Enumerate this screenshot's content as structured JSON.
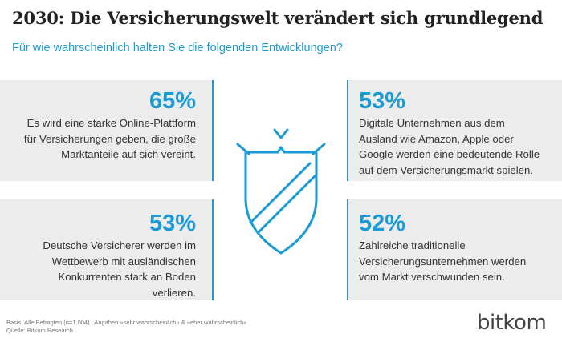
{
  "title": "2030: Die Versicherungswelt verändert sich grundlegend",
  "subtitle": "Für wie wahrscheinlich halten Sie die folgenden Entwicklungen?",
  "accent_color": "#1a9ad6",
  "boxes": {
    "top_left": {
      "percent": "65%",
      "lines": [
        "Es wird eine starke Online-Plattform",
        "für Versicherungen geben, die große",
        "Marktanteile auf sich vereint."
      ]
    },
    "top_right": {
      "percent": "53%",
      "lines": [
        "Digitale Unternehmen aus dem",
        "Ausland wie Amazon, Apple oder",
        "Google werden eine bedeutende Rolle",
        "auf dem Versicherungsmarkt spielen."
      ]
    },
    "bottom_left": {
      "percent": "53%",
      "lines": [
        "Deutsche Versicherer werden im",
        "Wettbewerb mit ausländischen",
        "Konkurrenten stark an Boden",
        "verlieren."
      ]
    },
    "bottom_right": {
      "percent": "52%",
      "lines": [
        "Zahlreiche traditionelle",
        "Versicherungsunternehmen werden",
        "vom Markt verschwunden sein."
      ]
    }
  },
  "center_icon": "shield-icon",
  "footer": {
    "basis": "Basis: Alle Befragten (n=1.004) | Angaben »sehr wahrscheinlich« & »eher wahrscheinlich«",
    "source": "Quelle: Bitkom Research"
  },
  "logo": "bitkom"
}
